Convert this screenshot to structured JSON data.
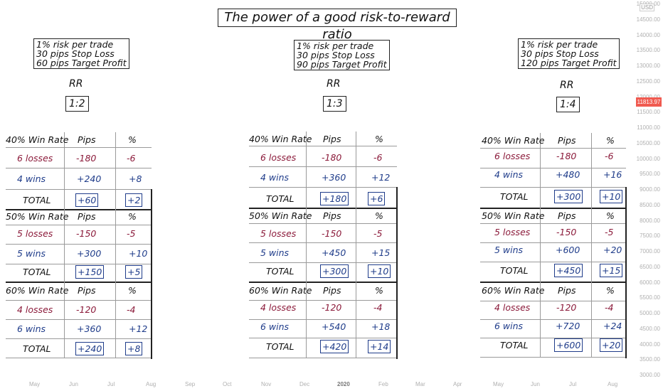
{
  "title": "The power of a good risk-to-reward ratio",
  "rr_label": "RR",
  "currency": "USD",
  "price_marker": "11813.97",
  "y_axis_ticks": [
    "15000.00",
    "14500.00",
    "14000.00",
    "13500.00",
    "13000.00",
    "12500.00",
    "12000.00",
    "11500.00",
    "11000.00",
    "10500.00",
    "10000.00",
    "9500.00",
    "9000.00",
    "8500.00",
    "8000.00",
    "7500.00",
    "7000.00",
    "6500.00",
    "6000.00",
    "5500.00",
    "5000.00",
    "4500.00",
    "4000.00",
    "3500.00",
    "3000.00"
  ],
  "x_axis_ticks": [
    "May",
    "Jun",
    "Jul",
    "Aug",
    "Sep",
    "Oct",
    "Nov",
    "Dec",
    "2020",
    "Feb",
    "Mar",
    "Apr",
    "May",
    "Jun",
    "Jul",
    "Aug"
  ],
  "panels": [
    {
      "info": [
        "1% risk per trade",
        "30 pips Stop Loss",
        "60 pips Target Profit"
      ],
      "rr": "1:2",
      "sections": [
        {
          "header": "40% Win Rate",
          "pips_h": "Pips",
          "pct_h": "%",
          "loss_label": "6 losses",
          "loss_pips": "-180",
          "loss_pct": "-6",
          "win_label": "4 wins",
          "win_pips": "+240",
          "win_pct": "+8",
          "total_label": "TOTAL",
          "total_pips": "+60",
          "total_pct": "+2"
        },
        {
          "header": "50% Win Rate",
          "pips_h": "Pips",
          "pct_h": "%",
          "loss_label": "5 losses",
          "loss_pips": "-150",
          "loss_pct": "-5",
          "win_label": "5 wins",
          "win_pips": "+300",
          "win_pct": "+10",
          "total_label": "TOTAL",
          "total_pips": "+150",
          "total_pct": "+5"
        },
        {
          "header": "60% Win Rate",
          "pips_h": "Pips",
          "pct_h": "%",
          "loss_label": "4 losses",
          "loss_pips": "-120",
          "loss_pct": "-4",
          "win_label": "6 wins",
          "win_pips": "+360",
          "win_pct": "+12",
          "total_label": "TOTAL",
          "total_pips": "+240",
          "total_pct": "+8"
        }
      ]
    },
    {
      "info": [
        "1% risk per trade",
        "30 pips Stop Loss",
        "90 pips Target Profit"
      ],
      "rr": "1:3",
      "sections": [
        {
          "header": "40% Win Rate",
          "pips_h": "Pips",
          "pct_h": "%",
          "loss_label": "6 losses",
          "loss_pips": "-180",
          "loss_pct": "-6",
          "win_label": "4 wins",
          "win_pips": "+360",
          "win_pct": "+12",
          "total_label": "TOTAL",
          "total_pips": "+180",
          "total_pct": "+6"
        },
        {
          "header": "50% Win Rate",
          "pips_h": "Pips",
          "pct_h": "%",
          "loss_label": "5 losses",
          "loss_pips": "-150",
          "loss_pct": "-5",
          "win_label": "5 wins",
          "win_pips": "+450",
          "win_pct": "+15",
          "total_label": "TOTAL",
          "total_pips": "+300",
          "total_pct": "+10"
        },
        {
          "header": "60% Win Rate",
          "pips_h": "Pips",
          "pct_h": "%",
          "loss_label": "4 losses",
          "loss_pips": "-120",
          "loss_pct": "-4",
          "win_label": "6 wins",
          "win_pips": "+540",
          "win_pct": "+18",
          "total_label": "TOTAL",
          "total_pips": "+420",
          "total_pct": "+14"
        }
      ]
    },
    {
      "info": [
        "1% risk per trade",
        "30 pips Stop Loss",
        "120 pips Target Profit"
      ],
      "rr": "1:4",
      "sections": [
        {
          "header": "40% Win Rate",
          "pips_h": "Pips",
          "pct_h": "%",
          "loss_label": "6 losses",
          "loss_pips": "-180",
          "loss_pct": "-6",
          "win_label": "4 wins",
          "win_pips": "+480",
          "win_pct": "+16",
          "total_label": "TOTAL",
          "total_pips": "+300",
          "total_pct": "+10"
        },
        {
          "header": "50% Win Rate",
          "pips_h": "Pips",
          "pct_h": "%",
          "loss_label": "5 losses",
          "loss_pips": "-150",
          "loss_pct": "-5",
          "win_label": "5 wins",
          "win_pips": "+600",
          "win_pct": "+20",
          "total_label": "TOTAL",
          "total_pips": "+450",
          "total_pct": "+15"
        },
        {
          "header": "60% Win Rate",
          "pips_h": "Pips",
          "pct_h": "%",
          "loss_label": "4 losses",
          "loss_pips": "-120",
          "loss_pct": "-4",
          "win_label": "6 wins",
          "win_pips": "+720",
          "win_pct": "+24",
          "total_label": "TOTAL",
          "total_pips": "+600",
          "total_pct": "+20"
        }
      ]
    }
  ],
  "chart_data": {
    "type": "table",
    "title": "The power of a good risk-to-reward ratio",
    "columns": [
      "Pips",
      "%"
    ],
    "tables": [
      {
        "rr": "1:2",
        "rows": [
          [
            "40% Win Rate",
            "6 losses",
            -180,
            -6
          ],
          [
            "40% Win Rate",
            "4 wins",
            240,
            8
          ],
          [
            "40% Win Rate",
            "TOTAL",
            60,
            2
          ],
          [
            "50% Win Rate",
            "5 losses",
            -150,
            -5
          ],
          [
            "50% Win Rate",
            "5 wins",
            300,
            10
          ],
          [
            "50% Win Rate",
            "TOTAL",
            150,
            5
          ],
          [
            "60% Win Rate",
            "4 losses",
            -120,
            -4
          ],
          [
            "60% Win Rate",
            "6 wins",
            360,
            12
          ],
          [
            "60% Win Rate",
            "TOTAL",
            240,
            8
          ]
        ]
      },
      {
        "rr": "1:3",
        "rows": [
          [
            "40% Win Rate",
            "6 losses",
            -180,
            -6
          ],
          [
            "40% Win Rate",
            "4 wins",
            360,
            12
          ],
          [
            "40% Win Rate",
            "TOTAL",
            180,
            6
          ],
          [
            "50% Win Rate",
            "5 losses",
            -150,
            -5
          ],
          [
            "50% Win Rate",
            "5 wins",
            450,
            15
          ],
          [
            "50% Win Rate",
            "TOTAL",
            300,
            10
          ],
          [
            "60% Win Rate",
            "4 losses",
            -120,
            -4
          ],
          [
            "60% Win Rate",
            "6 wins",
            540,
            18
          ],
          [
            "60% Win Rate",
            "TOTAL",
            420,
            14
          ]
        ]
      },
      {
        "rr": "1:4",
        "rows": [
          [
            "40% Win Rate",
            "6 losses",
            -180,
            -6
          ],
          [
            "40% Win Rate",
            "4 wins",
            480,
            16
          ],
          [
            "40% Win Rate",
            "TOTAL",
            300,
            10
          ],
          [
            "50% Win Rate",
            "5 losses",
            -150,
            -5
          ],
          [
            "50% Win Rate",
            "5 wins",
            600,
            20
          ],
          [
            "50% Win Rate",
            "TOTAL",
            450,
            15
          ],
          [
            "60% Win Rate",
            "4 losses",
            -120,
            -4
          ],
          [
            "60% Win Rate",
            "6 wins",
            720,
            24
          ],
          [
            "60% Win Rate",
            "TOTAL",
            600,
            20
          ]
        ]
      }
    ]
  }
}
